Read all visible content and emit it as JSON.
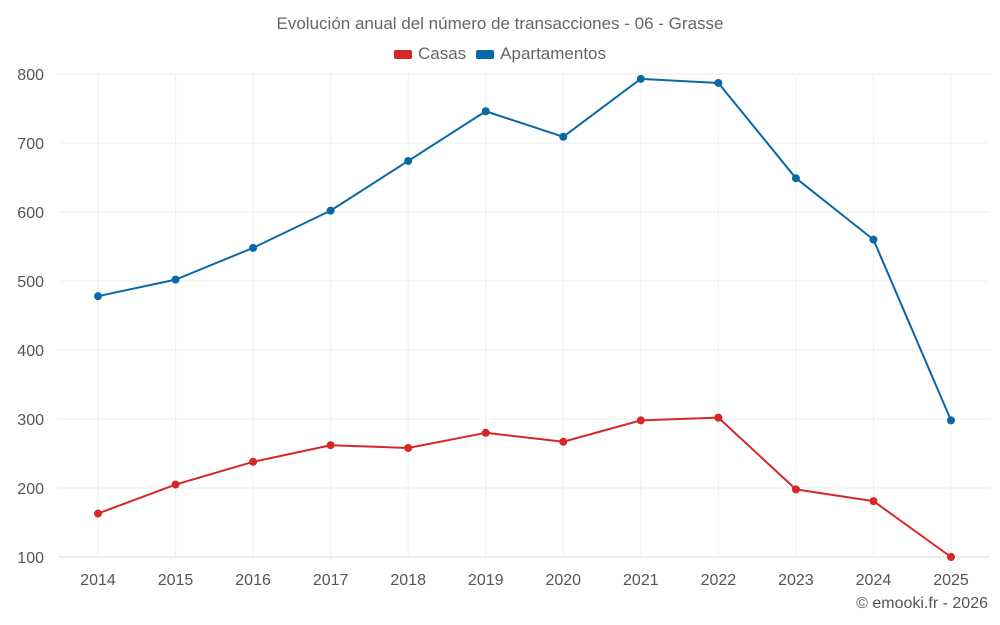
{
  "chart_data": {
    "type": "line",
    "title": "Evolución anual del número de transacciones - 06 - Grasse",
    "xlabel": "",
    "ylabel": "",
    "categories": [
      "2014",
      "2015",
      "2016",
      "2017",
      "2018",
      "2019",
      "2020",
      "2021",
      "2022",
      "2023",
      "2024",
      "2025"
    ],
    "series": [
      {
        "name": "Casas",
        "color": "#d62728",
        "values": [
          163,
          205,
          238,
          262,
          258,
          280,
          267,
          298,
          302,
          198,
          181,
          100
        ]
      },
      {
        "name": "Apartamentos",
        "color": "#0868a6",
        "values": [
          478,
          502,
          548,
          602,
          674,
          746,
          709,
          793,
          787,
          649,
          560,
          298
        ]
      }
    ],
    "ylim": [
      100,
      800
    ],
    "yticks": [
      100,
      200,
      300,
      400,
      500,
      600,
      700,
      800
    ],
    "grid": true,
    "legend_position": "top-center"
  },
  "credit": "© emooki.fr - 2026"
}
